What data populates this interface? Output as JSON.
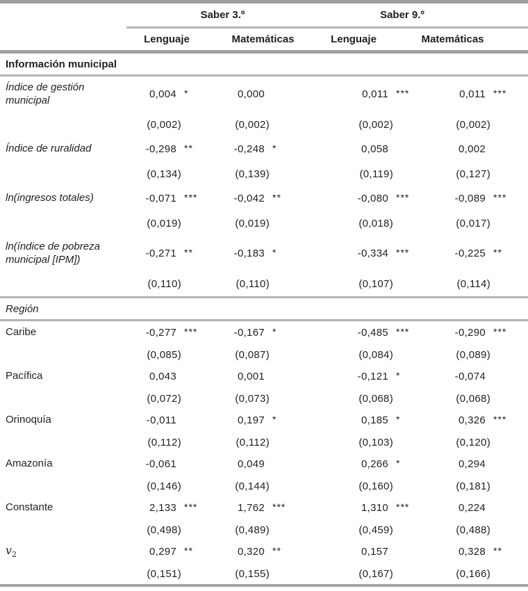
{
  "table": {
    "group_headers": [
      "Saber 3.º",
      "Saber 9.º"
    ],
    "sub_columns": [
      "Lenguaje",
      "Matemáticas",
      "Lenguaje",
      "Matemáticas"
    ],
    "sections": [
      {
        "title": "Información municipal",
        "title_bold": true,
        "rows": [
          {
            "label": "Índice de gestión municipal",
            "italic": true,
            "coefs": [
              "0,004",
              "0,000",
              "0,011",
              "0,011"
            ],
            "stars": [
              "*",
              "",
              "***",
              "***"
            ],
            "ses": [
              "(0,002)",
              "(0,002)",
              "(0,002)",
              "(0,002)"
            ]
          },
          {
            "label": "Índice de ruralidad",
            "italic": true,
            "coefs": [
              "-0,298",
              "-0,248",
              "0,058",
              "0,002"
            ],
            "stars": [
              "**",
              "*",
              "",
              ""
            ],
            "ses": [
              "(0,134)",
              "(0,139)",
              "(0,119)",
              "(0,127)"
            ]
          },
          {
            "label": "ln(ingresos totales)",
            "italic": true,
            "coefs": [
              "-0,071",
              "-0,042",
              "-0,080",
              "-0,089"
            ],
            "stars": [
              "***",
              "**",
              "***",
              "***"
            ],
            "ses": [
              "(0,019)",
              "(0,019)",
              "(0,018)",
              "(0,017)"
            ]
          },
          {
            "label": "ln(índice de pobreza municipal [IPM])",
            "italic": true,
            "coefs": [
              "-0,271",
              "-0,183",
              "-0,334",
              "-0,225"
            ],
            "stars": [
              "**",
              "*",
              "***",
              "**"
            ],
            "ses": [
              "(0,110)",
              "(0,110)",
              "(0,107)",
              "(0,114)"
            ]
          }
        ]
      },
      {
        "title": "Región",
        "title_italic": true,
        "rows": [
          {
            "label": "Caribe",
            "italic": false,
            "coefs": [
              "-0,277",
              "-0,167",
              "-0,485",
              "-0,290"
            ],
            "stars": [
              "***",
              "*",
              "***",
              "***"
            ],
            "ses": [
              "(0,085)",
              "(0,087)",
              "(0,084)",
              "(0,089)"
            ]
          },
          {
            "label": "Pacífica",
            "italic": false,
            "coefs": [
              "0,043",
              "0,001",
              "-0,121",
              "-0,074"
            ],
            "stars": [
              "",
              "",
              "*",
              ""
            ],
            "ses": [
              "(0,072)",
              "(0,073)",
              "(0,068)",
              "(0,068)"
            ]
          },
          {
            "label": "Orinoquía",
            "italic": false,
            "coefs": [
              "-0,011",
              "0,197",
              "0,185",
              "0,326"
            ],
            "stars": [
              "",
              "*",
              "*",
              "***"
            ],
            "ses": [
              "(0,112)",
              "(0,112)",
              "(0,103)",
              "(0,120)"
            ]
          },
          {
            "label": "Amazonía",
            "italic": false,
            "coefs": [
              "-0,061",
              "0,049",
              "0,266",
              "0,294"
            ],
            "stars": [
              "",
              "",
              "*",
              ""
            ],
            "ses": [
              "(0,146)",
              "(0,144)",
              "(0,160)",
              "(0,181)"
            ]
          },
          {
            "label": "Constante",
            "italic": false,
            "coefs": [
              "2,133",
              "1,762",
              "1,310",
              "0,224"
            ],
            "stars": [
              "***",
              "***",
              "***",
              ""
            ],
            "ses": [
              "(0,498)",
              "(0,489)",
              "(0,459)",
              "(0,488)"
            ]
          },
          {
            "label": "v",
            "label_sub": "2",
            "italic": false,
            "coefs": [
              "0,297",
              "0,320",
              "0,157",
              "0,328"
            ],
            "stars": [
              "**",
              "**",
              "",
              "**"
            ],
            "ses": [
              "(0,151)",
              "(0,155)",
              "(0,167)",
              "(0,166)"
            ]
          }
        ]
      }
    ],
    "colors": {
      "rule_gray": "#b3b3b3",
      "rule_dark": "#a2a2a2",
      "rule_top": "#9e9e9e",
      "rule_bottom": "#9fa7a9",
      "text": "#1f1f1f"
    }
  }
}
